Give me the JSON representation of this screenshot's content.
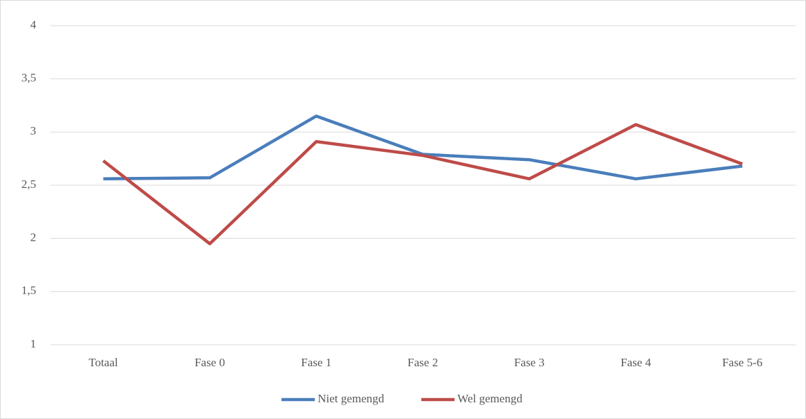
{
  "chart_data": {
    "type": "line",
    "categories": [
      "Totaal",
      "Fase 0",
      "Fase 1",
      "Fase 2",
      "Fase 3",
      "Fase 4",
      "Fase 5-6"
    ],
    "series": [
      {
        "name": "Niet gemengd",
        "color": "#4a7ebb",
        "values": [
          2.56,
          2.57,
          3.15,
          2.79,
          2.74,
          2.56,
          2.68
        ]
      },
      {
        "name": "Wel gemengd",
        "color": "#be4b48",
        "values": [
          2.73,
          1.95,
          2.91,
          2.78,
          2.56,
          3.07,
          2.7
        ]
      }
    ],
    "ylim": [
      1,
      4
    ],
    "yticks": [
      1,
      {
        "value": 1.5,
        "label": "1,5"
      },
      2,
      {
        "value": 2.5,
        "label": "2,5"
      },
      3,
      {
        "value": 3.5,
        "label": "3,5"
      },
      4
    ],
    "grid": true,
    "legend": "bottom"
  }
}
